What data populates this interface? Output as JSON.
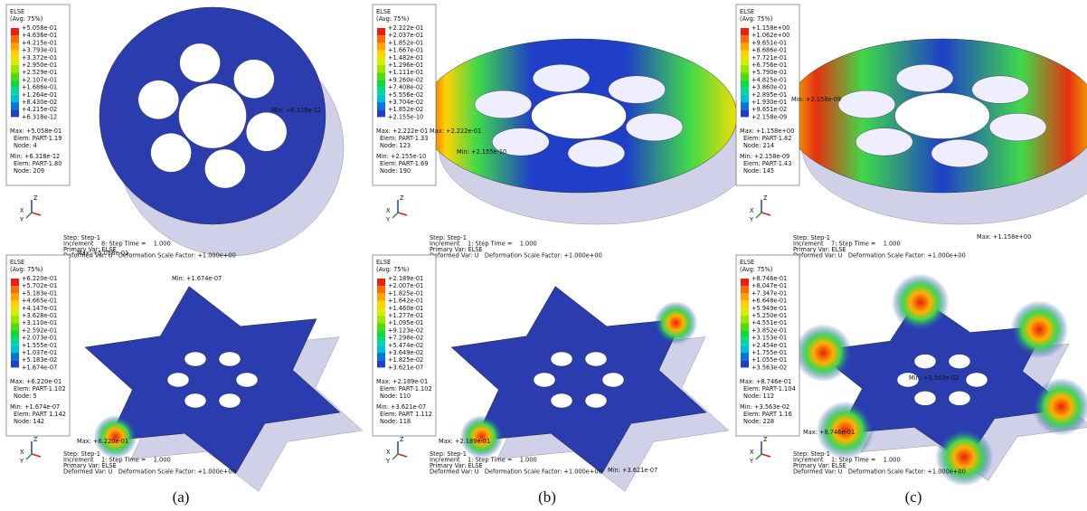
{
  "panels": [
    {
      "legend_title": "ELSE",
      "legend_avg": "(Avg: 75%)",
      "legend_values": [
        "+5.058e-01",
        "+4.636e-01",
        "+4.215e-01",
        "+3.793e-01",
        "+3.372e-01",
        "+2.950e-01",
        "+2.529e-01",
        "+2.107e-01",
        "+1.686e-01",
        "+1.264e-01",
        "+8.430e-02",
        "+4.215e-02",
        "+6.318e-12"
      ],
      "max": [
        "Max: +5.058e-01",
        "Elem: PART-1.19",
        "Node: 4"
      ],
      "min": [
        "Min: +6.318e-12",
        "Elem: PART-1.80",
        "Node: 209"
      ],
      "annotations": {
        "max": "Max: +5.058e-01",
        "min": "Min: +6.318e-12"
      },
      "step": [
        "Step: Step-1",
        "Increment    8: Step Time =    1.000",
        "Primary Var: ELSE",
        "Deformed Var: U   Deformation Scale Factor: +1.000e+00"
      ],
      "triad": {
        "z": "Z",
        "y": "Y",
        "x": "X"
      }
    },
    {
      "legend_title": "ELSE",
      "legend_avg": "(Avg: 75%)",
      "legend_values": [
        "+2.222e-01",
        "+2.037e-01",
        "+1.852e-01",
        "+1.667e-01",
        "+1.482e-01",
        "+1.296e-01",
        "+1.111e-01",
        "+9.260e-02",
        "+7.408e-02",
        "+5.556e-02",
        "+3.704e-02",
        "+1.852e-02",
        "+2.155e-10"
      ],
      "max": [
        "Max: +2.222e-01",
        "Elem: PART-1.33",
        "Node: 123"
      ],
      "min": [
        "Min: +2.155e-10",
        "Elem: PART-1.69",
        "Node: 190"
      ],
      "annotations": {
        "max": "Max: +2.222e-01",
        "min": "Min: +2.155e-10"
      },
      "step": [
        "Step: Step-1",
        "Increment    1: Step Time =    1.000",
        "Primary Var: ELSE",
        "Deformed Var: U   Deformation Scale Factor: +1.000e+00"
      ],
      "triad": {
        "z": "Z",
        "y": "Y",
        "x": "X"
      }
    },
    {
      "legend_title": "ELSE",
      "legend_avg": "(Avg: 75%)",
      "legend_values": [
        "+1.158e+00",
        "+1.062e+00",
        "+9.651e-01",
        "+8.686e-01",
        "+7.721e-01",
        "+6.756e-01",
        "+5.790e-01",
        "+4.825e-01",
        "+3.860e-01",
        "+2.895e-01",
        "+1.930e-01",
        "+9.651e-02",
        "+2.158e-09"
      ],
      "max": [
        "Max: +1.158e+00",
        "Elem: PART-1.82",
        "Node: 214"
      ],
      "min": [
        "Min: +2.158e-09",
        "Elem: PART-1.43",
        "Node: 145"
      ],
      "annotations": {
        "max": "Max: +1.158e+00",
        "min": "Min: +2.158e-09"
      },
      "step": [
        "Step: Step-1",
        "Increment    7: Step Time =    1.000",
        "Primary Var: ELSE",
        "Deformed Var: U   Deformation Scale Factor: +1.000e+00"
      ],
      "triad": {
        "z": "Z",
        "y": "Y",
        "x": "X"
      }
    },
    {
      "legend_title": "ELSE",
      "legend_avg": "(Avg: 75%)",
      "legend_values": [
        "+6.220e-01",
        "+5.702e-01",
        "+5.183e-01",
        "+4.665e-01",
        "+4.147e-01",
        "+3.628e-01",
        "+3.110e-01",
        "+2.592e-01",
        "+2.073e-01",
        "+1.555e-01",
        "+1.037e-01",
        "+5.183e-02",
        "+1.674e-07"
      ],
      "max": [
        "Max: +6.220e-01",
        "Elem: PART-1.102",
        "Node: 5"
      ],
      "min": [
        "Min: +1.674e-07",
        "Elem: PART 1.142",
        "Node: 142"
      ],
      "annotations": {
        "max": "Max: +6.220e-01",
        "min": "Min: +1.674e-07"
      },
      "step": [
        "Step: Step-1",
        "Increment    1: Step Time =    1.000",
        "Primary Var: ELSE",
        "Deformed Var: U   Deformation Scale Factor: +1.000e+00"
      ],
      "triad": {
        "z": "Z",
        "y": "Y",
        "x": "X"
      }
    },
    {
      "legend_title": "ELSE",
      "legend_avg": "(Avg: 75%)",
      "legend_values": [
        "+2.189e-01",
        "+2.007e-01",
        "+1.825e-01",
        "+1.642e-01",
        "+1.460e-01",
        "+1.277e-01",
        "+1.095e-01",
        "+9.123e-02",
        "+7.298e-02",
        "+5.474e-02",
        "+3.649e-02",
        "+1.825e-02",
        "+3.621e-07"
      ],
      "max": [
        "Max: +2.189e-01",
        "Elem: PART-1.102",
        "Node: 110"
      ],
      "min": [
        "Min: +3.621e-07",
        "Elem: PART 1.112",
        "Node: 118"
      ],
      "annotations": {
        "max": "Max: +2.189e-01",
        "min": "Min: +3.621e-07"
      },
      "step": [
        "Step: Step-1",
        "Increment    1: Step Time =    1.000",
        "Primary Var: ELSE",
        "Deformed Var: U   Deformation Scale Factor: +1.000e+00"
      ],
      "triad": {
        "z": "Z",
        "y": "Y",
        "x": "X"
      }
    },
    {
      "legend_title": "ELSE",
      "legend_avg": "(Avg: 75%)",
      "legend_values": [
        "+8.746e-01",
        "+8.047e-01",
        "+7.347e-01",
        "+6.648e-01",
        "+5.949e-01",
        "+5.250e-01",
        "+4.551e-01",
        "+3.852e-01",
        "+3.153e-01",
        "+2.454e-01",
        "+1.755e-01",
        "+1.055e-01",
        "+3.563e-02"
      ],
      "max": [
        "Max: +8.746e-01",
        "Elem: PART-1.104",
        "Node: 112"
      ],
      "min": [
        "Min: +3.563e-02",
        "Elem: PART 1.16",
        "Node: 228"
      ],
      "annotations": {
        "max": "Max: +8.746e-01",
        "min": "Min: +3.563e-02"
      },
      "step": [
        "Step: Step-1",
        "Increment    1: Step Time =    1.000",
        "Primary Var: ELSE",
        "Deformed Var: U   Deformation Scale Factor: +1.000e+00"
      ],
      "triad": {
        "z": "Z",
        "y": "Y",
        "x": "X"
      }
    }
  ],
  "captions": [
    "(a)",
    "(b)",
    "(c)"
  ]
}
